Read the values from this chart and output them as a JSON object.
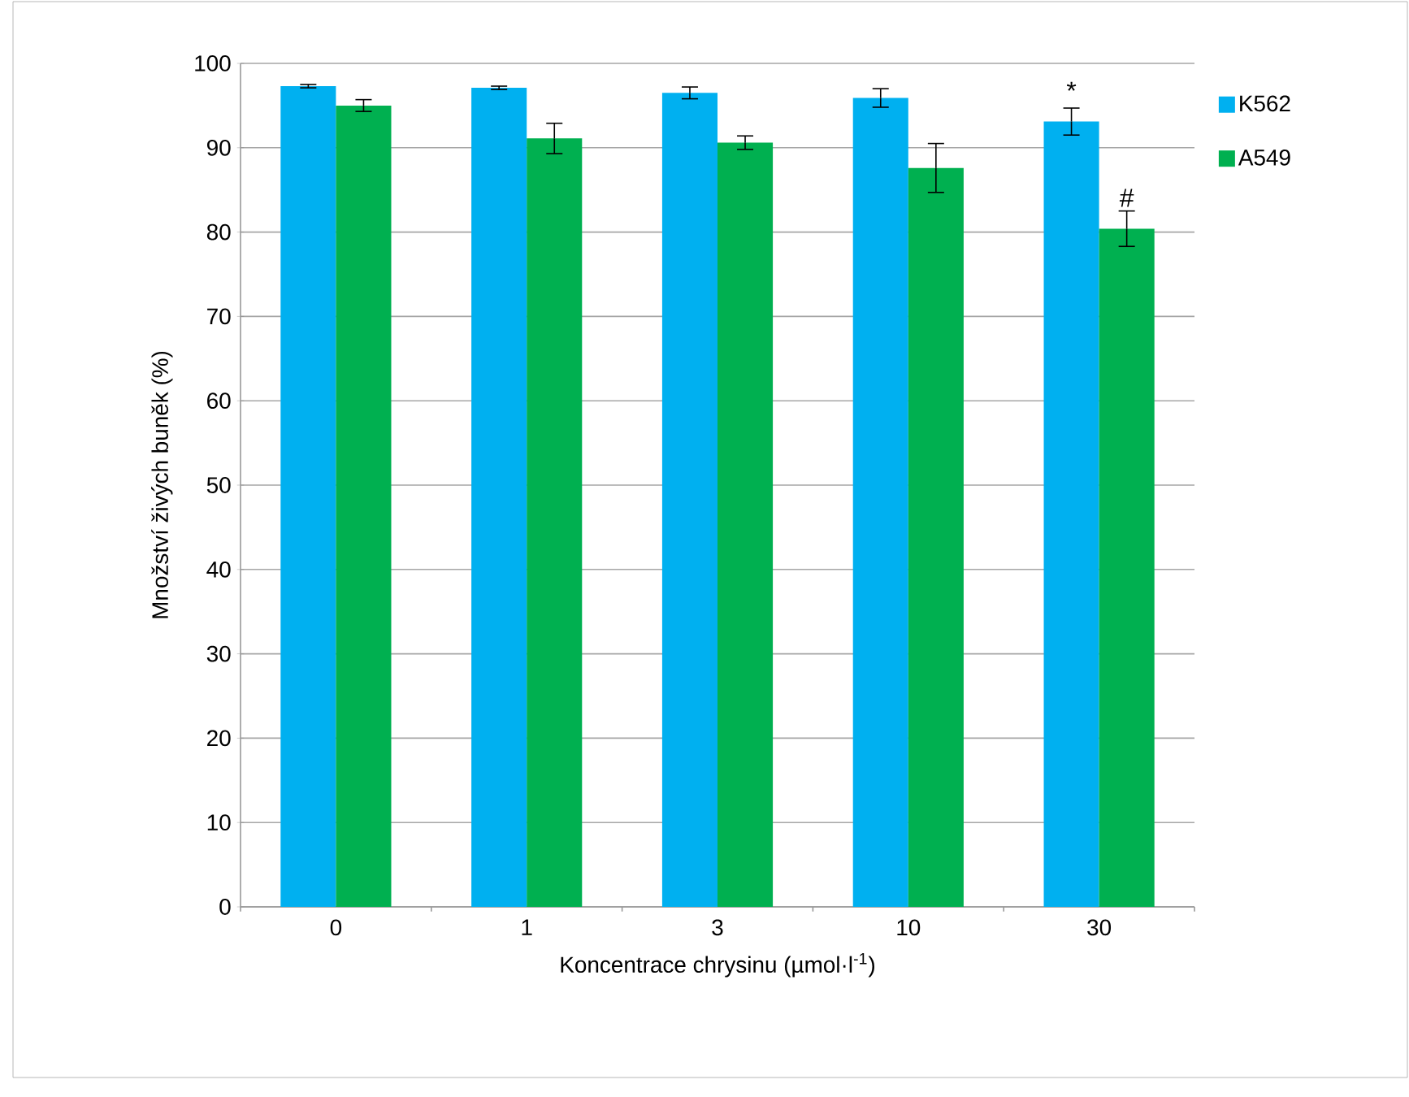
{
  "chart_data": {
    "type": "bar",
    "xlabel": "Koncentrace chrysinu (µmol·l$^{-1}$)",
    "ylabel": "Množství živých buněk (%)",
    "categories": [
      "0",
      "1",
      "3",
      "10",
      "30"
    ],
    "series": [
      {
        "name": "K562",
        "color": "#00b0f0",
        "values": [
          97.3,
          97.1,
          96.5,
          95.9,
          93.1
        ],
        "errors": [
          0.2,
          0.2,
          0.7,
          1.1,
          1.6
        ]
      },
      {
        "name": "A549",
        "color": "#00b050",
        "values": [
          95.0,
          91.1,
          90.6,
          87.6,
          80.4
        ],
        "errors": [
          0.7,
          1.8,
          0.8,
          2.9,
          2.1
        ]
      }
    ],
    "ylim": [
      0,
      100
    ],
    "yticks": [
      0,
      10,
      20,
      30,
      40,
      50,
      60,
      70,
      80,
      90,
      100
    ],
    "grid": "y",
    "legend": "right",
    "annotations": [
      "*",
      "#"
    ]
  }
}
